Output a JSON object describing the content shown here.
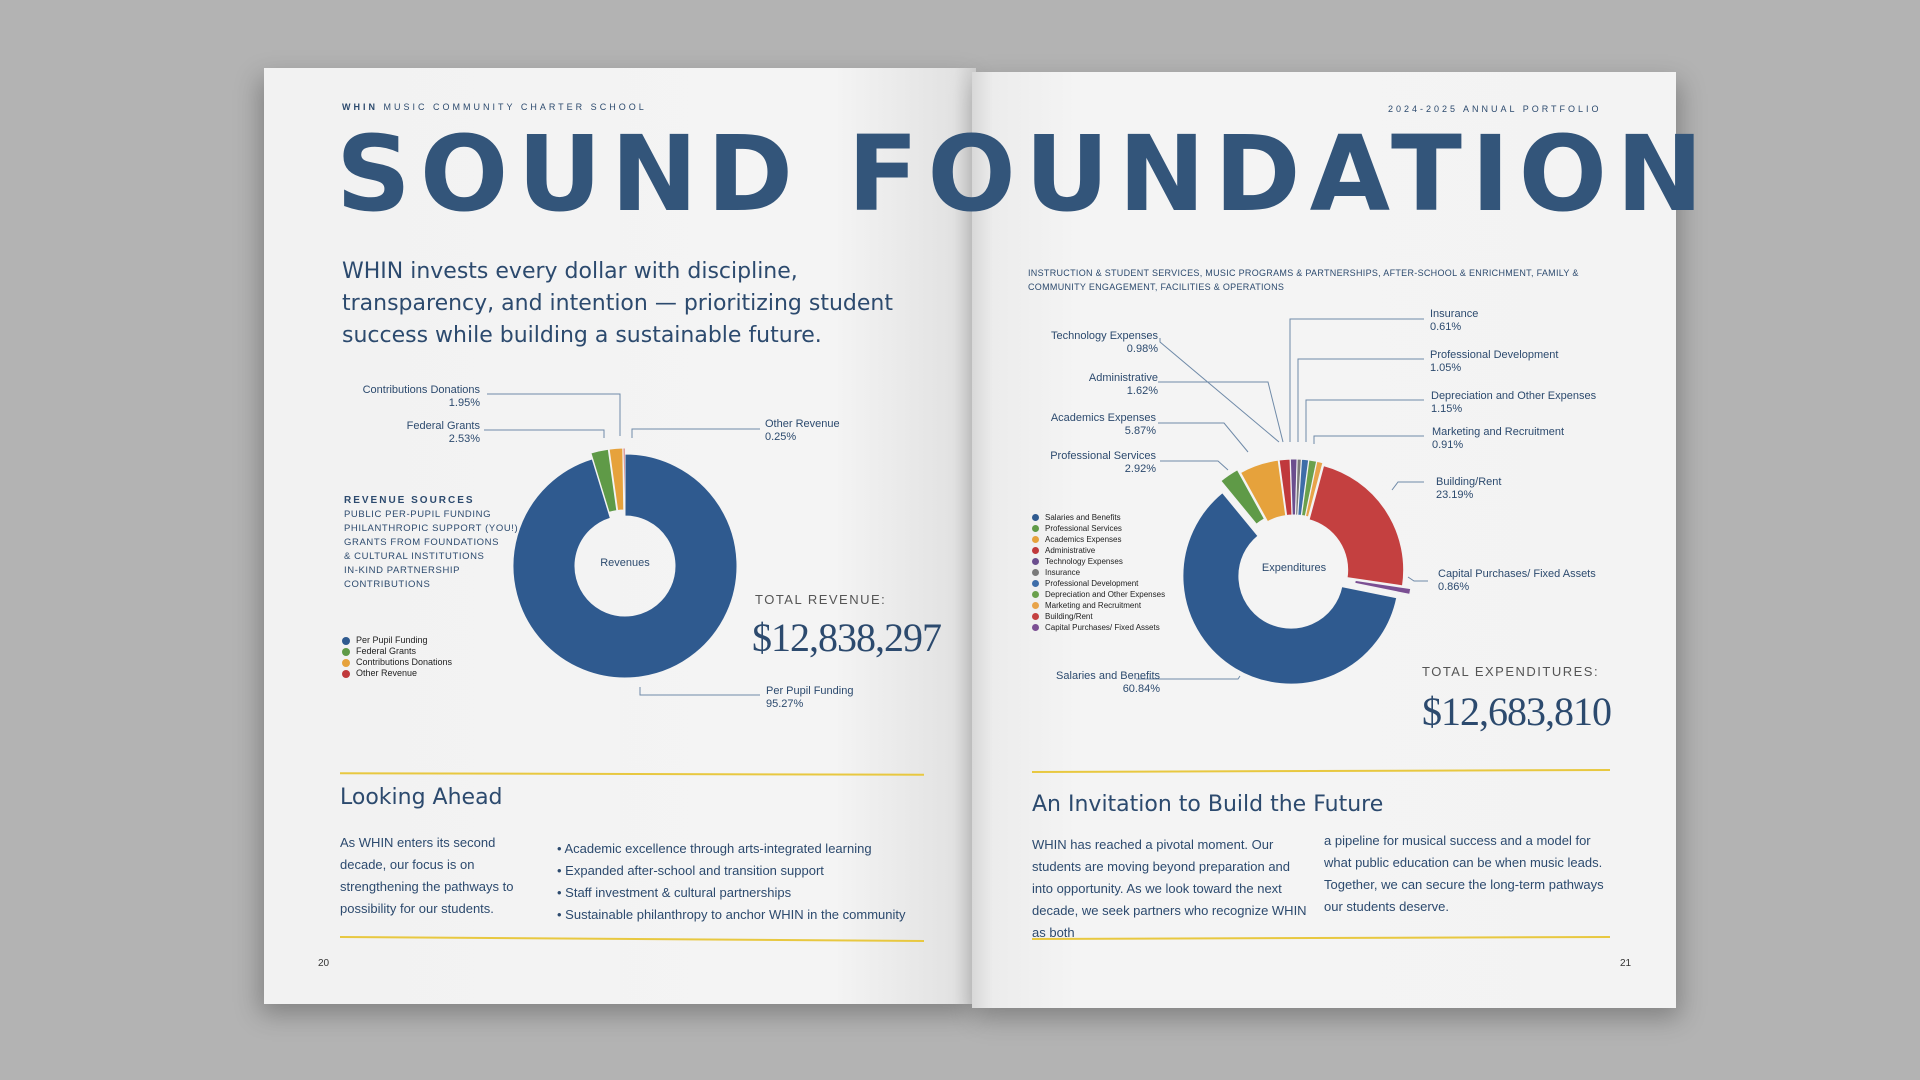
{
  "header": {
    "school_bold": "WHIN",
    "school_rest": "MUSIC COMMUNITY CHARTER SCHOOL",
    "portfolio": "2024-2025 ANNUAL PORTFOLIO"
  },
  "title": "SOUND FOUNDATION",
  "lead": "WHIN invests every dollar with discipline, transparency, and intention — prioritizing student success while building a sustainable future.",
  "categories_note": "INSTRUCTION & STUDENT SERVICES, MUSIC PROGRAMS & PARTNERSHIPS, AFTER-SCHOOL & ENRICHMENT, FAMILY & COMMUNITY ENGAGEMENT, FACILITIES & OPERATIONS",
  "revenue_sources": {
    "heading": "REVENUE SOURCES",
    "lines": [
      "PUBLIC PER-PUPIL FUNDING",
      "PHILANTHROPIC SUPPORT (YOU!)",
      "GRANTS FROM FOUNDATIONS",
      "& CULTURAL INSTITUTIONS",
      "IN-KIND PARTNERSHIP",
      "CONTRIBUTIONS"
    ]
  },
  "chart_data": [
    {
      "type": "pie",
      "title": "Revenues",
      "categories": [
        "Per Pupil Funding",
        "Federal Grants",
        "Contributions Donations",
        "Other Revenue"
      ],
      "values": [
        95.27,
        2.53,
        1.95,
        0.25
      ],
      "value_labels": [
        "95.27%",
        "2.53%",
        "1.95%",
        "0.25%"
      ],
      "colors": [
        "#2f5a8f",
        "#5f9a47",
        "#e6a23c",
        "#c0393c"
      ],
      "legend_position": "bottom-left"
    },
    {
      "type": "pie",
      "title": "Expenditures",
      "categories": [
        "Salaries and Benefits",
        "Professional Services",
        "Academics Expenses",
        "Administrative",
        "Technology Expenses",
        "Insurance",
        "Professional Development",
        "Depreciation and Other Expenses",
        "Marketing and Recruitment",
        "Building/Rent",
        "Capital Purchases/ Fixed Assets"
      ],
      "values": [
        60.84,
        2.92,
        5.87,
        1.62,
        0.98,
        0.61,
        1.05,
        1.15,
        0.91,
        23.19,
        0.86
      ],
      "value_labels": [
        "60.84%",
        "2.92%",
        "5.87%",
        "1.62%",
        "0.98%",
        "0.61%",
        "1.05%",
        "1.15%",
        "0.91%",
        "23.19%",
        "0.86%"
      ],
      "colors": [
        "#2f5a8f",
        "#5f9a47",
        "#e6a23c",
        "#c0393c",
        "#6b4e8e",
        "#7a7a7a",
        "#3e6da8",
        "#6aa04c",
        "#e8a44a",
        "#c44040",
        "#7b4f93"
      ],
      "legend_position": "left"
    }
  ],
  "revenue_total": {
    "label": "TOTAL REVENUE:",
    "value": "$12,838,297"
  },
  "expense_total": {
    "label": "TOTAL EXPENDITURES:",
    "value": "$12,683,810"
  },
  "looking_ahead": {
    "heading": "Looking Ahead",
    "body": "As WHIN enters its second decade, our focus is on strengthening the pathways to possibility for our students.",
    "bullets": [
      "• Academic excellence through arts-integrated learning",
      "• Expanded after-school and transition support",
      "• Staff investment & cultural partnerships",
      "• Sustainable philanthropy to anchor WHIN in the community"
    ]
  },
  "invitation": {
    "heading": "An Invitation to Build the Future",
    "col1": "WHIN has reached a pivotal moment.  Our students are moving beyond preparation and into opportunity. As we look toward the next decade, we seek partners who recognize WHIN as both",
    "col2": "a pipeline for musical success and a model for what public education can be when music leads. Together, we can secure the long-term pathways our students deserve."
  },
  "page_numbers": {
    "left": "20",
    "right": "21"
  }
}
